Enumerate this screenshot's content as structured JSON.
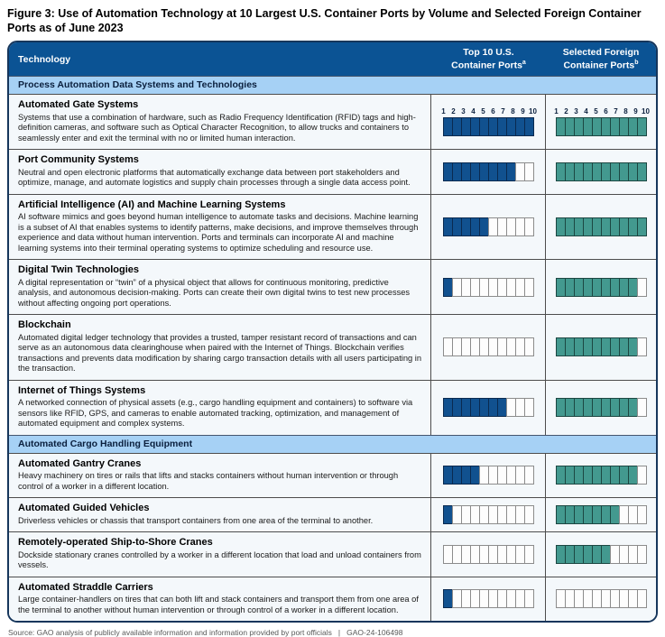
{
  "figure": {
    "title": "Figure 3: Use of Automation Technology at 10 Largest U.S. Container Ports by Volume and Selected Foreign Container Ports as of June 2023"
  },
  "table": {
    "header": {
      "technology": "Technology",
      "us_line1": "Top 10 U.S.",
      "us_line2": "Container Ports",
      "us_sup": "a",
      "foreign_line1": "Selected Foreign",
      "foreign_line2": "Container Ports",
      "foreign_sup": "b"
    },
    "scale_numbers": [
      "1",
      "2",
      "3",
      "4",
      "5",
      "6",
      "7",
      "8",
      "9",
      "10"
    ],
    "ports_total": 10,
    "sections": [
      {
        "label": "Process Automation Data Systems and Technologies",
        "rows": [
          {
            "name": "Automated Gate Systems",
            "description": "Systems that use a combination of hardware, such as Radio Frequency Identification (RFID) tags and high-definition cameras, and software such as Optical Character Recognition, to allow trucks and containers to seamlessly enter and exit the terminal with no or limited human interaction.",
            "us_count": 10,
            "foreign_count": 10,
            "show_numbers": true
          },
          {
            "name": "Port Community Systems",
            "description": "Neutral and open electronic platforms that automatically exchange data between port stakeholders and optimize, manage, and automate logistics and supply chain processes through a single data access point.",
            "us_count": 8,
            "foreign_count": 10,
            "show_numbers": false
          },
          {
            "name": "Artificial Intelligence (AI) and Machine Learning Systems",
            "description": "AI software mimics and goes beyond human intelligence to automate tasks and decisions. Machine learning is a subset of AI that enables systems to identify patterns, make decisions, and improve themselves through experience and data without human intervention. Ports and terminals can incorporate AI and machine learning systems into their terminal operating systems to optimize scheduling and resource use.",
            "us_count": 5,
            "foreign_count": 10,
            "show_numbers": false
          },
          {
            "name": "Digital Twin Technologies",
            "description": "A digital representation or “twin” of a physical object that allows for continuous monitoring, predictive analysis, and autonomous decision-making. Ports can create their own digital twins to test new processes without affecting ongoing port operations.",
            "us_count": 1,
            "foreign_count": 9,
            "show_numbers": false
          },
          {
            "name": "Blockchain",
            "description": "Automated digital ledger technology that provides a trusted, tamper resistant record of transactions and can serve as an autonomous data clearinghouse when paired with the Internet of Things. Blockchain verifies transactions and prevents data modification by sharing cargo transaction details with all users participating in the transaction.",
            "us_count": 0,
            "foreign_count": 9,
            "show_numbers": false
          },
          {
            "name": "Internet of Things Systems",
            "description": "A networked connection of physical assets (e.g., cargo handling equipment and containers) to software via sensors like RFID, GPS, and cameras to enable automated tracking, optimization, and management of automated equipment and complex systems.",
            "us_count": 7,
            "foreign_count": 9,
            "show_numbers": false
          }
        ]
      },
      {
        "label": "Automated Cargo Handling Equipment",
        "rows": [
          {
            "name": "Automated Gantry Cranes",
            "description": "Heavy machinery on tires or rails that lifts and stacks containers without human intervention or through control of a worker in a different location.",
            "us_count": 4,
            "foreign_count": 9,
            "show_numbers": false
          },
          {
            "name": "Automated Guided Vehicles",
            "description": "Driverless vehicles or chassis that transport containers from one area of the terminal to another.",
            "us_count": 1,
            "foreign_count": 7,
            "show_numbers": false
          },
          {
            "name": "Remotely-operated Ship-to-Shore Cranes",
            "description": "Dockside stationary cranes controlled by a worker in a different location that load and unload containers from vessels.",
            "us_count": 0,
            "foreign_count": 6,
            "show_numbers": false
          },
          {
            "name": "Automated Straddle Carriers",
            "description": "Large container-handlers on tires that can both lift and stack containers and transport them from one area of the terminal to another without human intervention or through control of a worker in a different location.",
            "us_count": 1,
            "foreign_count": 0,
            "show_numbers": false
          }
        ]
      }
    ]
  },
  "footer": {
    "source": "Source: GAO analysis of publicly available information and information provided by port officials",
    "divider": "|",
    "report_id": "GAO-24-106498"
  },
  "colors": {
    "header_bg": "#0b5394",
    "band_bg": "#a6d1f5",
    "us_fill": "#11518f",
    "foreign_fill": "#43998f",
    "row_bg": "#f4f8fb"
  },
  "chart_data": {
    "type": "table",
    "title": "Figure 3: Use of Automation Technology at 10 Largest U.S. Container Ports by Volume and Selected Foreign Container Ports as of June 2023",
    "categories": [
      "Automated Gate Systems",
      "Port Community Systems",
      "Artificial Intelligence (AI) and Machine Learning Systems",
      "Digital Twin Technologies",
      "Blockchain",
      "Internet of Things Systems",
      "Automated Gantry Cranes",
      "Automated Guided Vehicles",
      "Remotely-operated Ship-to-Shore Cranes",
      "Automated Straddle Carriers"
    ],
    "series": [
      {
        "name": "Top 10 U.S. Container Ports",
        "values": [
          10,
          8,
          5,
          1,
          0,
          7,
          4,
          1,
          0,
          1
        ]
      },
      {
        "name": "Selected Foreign Container Ports",
        "values": [
          10,
          10,
          10,
          9,
          9,
          9,
          9,
          7,
          6,
          0
        ]
      }
    ],
    "value_range": [
      0,
      10
    ],
    "group_labels": [
      "Process Automation Data Systems and Technologies",
      "Automated Cargo Handling Equipment"
    ]
  }
}
